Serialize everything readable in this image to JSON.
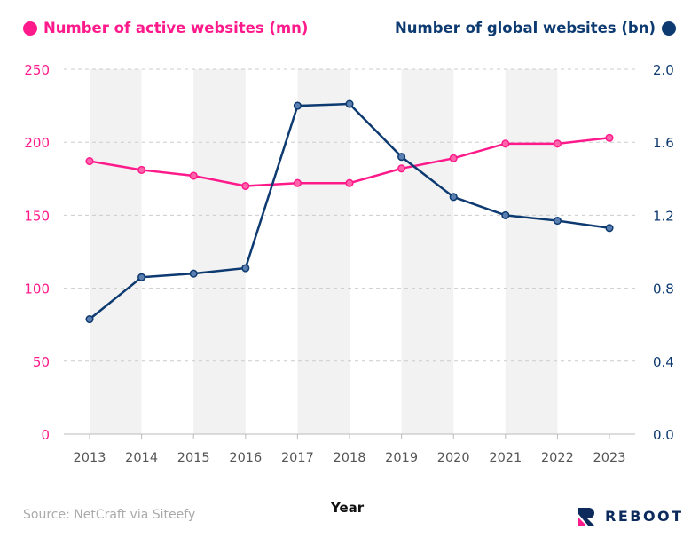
{
  "chart_data": {
    "type": "line",
    "x": [
      2013,
      2014,
      2015,
      2016,
      2017,
      2018,
      2019,
      2020,
      2021,
      2022,
      2023
    ],
    "xlabel": "Year",
    "series": [
      {
        "name": "Number of active websites (mn)",
        "axis": "left",
        "color": "#ff1a8c",
        "values": [
          187,
          181,
          177,
          170,
          172,
          172,
          182,
          189,
          199,
          199,
          203
        ]
      },
      {
        "name": "Number of global websites (bn)",
        "axis": "right",
        "color": "#0d3a70",
        "values": [
          0.63,
          0.86,
          0.88,
          0.91,
          1.8,
          1.81,
          1.52,
          1.3,
          1.2,
          1.17,
          1.13
        ]
      }
    ],
    "ylim_left": [
      0,
      250
    ],
    "yticks_left": [
      "0",
      "50",
      "100",
      "150",
      "200",
      "250"
    ],
    "ylim_right": [
      0,
      2.0
    ],
    "yticks_right": [
      "0.0",
      "0.4",
      "0.8",
      "1.2",
      "1.6",
      "2.0"
    ],
    "grid": true,
    "legend": "top"
  },
  "source": "Source: NetCraft via Siteefy",
  "brand": "REBOOT"
}
